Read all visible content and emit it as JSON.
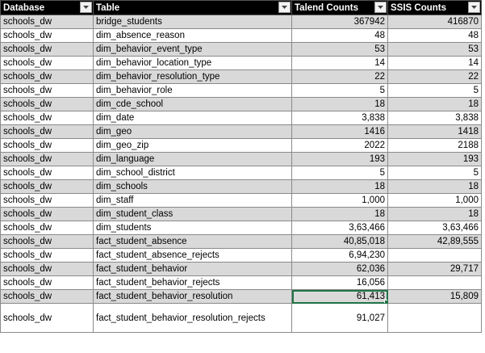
{
  "headers": [
    {
      "label": "Database",
      "key": "database"
    },
    {
      "label": "Table",
      "key": "table"
    },
    {
      "label": "Talend Counts",
      "key": "talend"
    },
    {
      "label": "SSIS Counts",
      "key": "ssis"
    }
  ],
  "header_icon": "filter-dropdown-icon",
  "colors": {
    "header_bg": "#000000",
    "header_text": "#ffffff",
    "band": "#d9d9d9",
    "selection": "#217346"
  },
  "rows": [
    {
      "database": "schools_dw",
      "table": "bridge_students",
      "talend": "367942",
      "ssis": "416870"
    },
    {
      "database": "schools_dw",
      "table": "dim_absence_reason",
      "talend": "48",
      "ssis": "48"
    },
    {
      "database": "schools_dw",
      "table": "dim_behavior_event_type",
      "talend": "53",
      "ssis": "53"
    },
    {
      "database": "schools_dw",
      "table": "dim_behavior_location_type",
      "talend": "14",
      "ssis": "14"
    },
    {
      "database": "schools_dw",
      "table": "dim_behavior_resolution_type",
      "talend": "22",
      "ssis": "22"
    },
    {
      "database": "schools_dw",
      "table": "dim_behavior_role",
      "talend": "5",
      "ssis": "5"
    },
    {
      "database": "schools_dw",
      "table": "dim_cde_school",
      "talend": "18",
      "ssis": "18"
    },
    {
      "database": "schools_dw",
      "table": "dim_date",
      "talend": "3,838",
      "ssis": "3,838"
    },
    {
      "database": "schools_dw",
      "table": "dim_geo",
      "talend": "1416",
      "ssis": "1418"
    },
    {
      "database": "schools_dw",
      "table": "dim_geo_zip",
      "talend": "2022",
      "ssis": "2188"
    },
    {
      "database": "schools_dw",
      "table": "dim_language",
      "talend": "193",
      "ssis": "193"
    },
    {
      "database": "schools_dw",
      "table": "dim_school_district",
      "talend": "5",
      "ssis": "5"
    },
    {
      "database": "schools_dw",
      "table": "dim_schools",
      "talend": "18",
      "ssis": "18"
    },
    {
      "database": "schools_dw",
      "table": "dim_staff",
      "talend": "1,000",
      "ssis": "1,000"
    },
    {
      "database": "schools_dw",
      "table": "dim_student_class",
      "talend": "18",
      "ssis": "18"
    },
    {
      "database": "schools_dw",
      "table": "dim_students",
      "talend": "3,63,466",
      "ssis": "3,63,466"
    },
    {
      "database": "schools_dw",
      "table": "fact_student_absence",
      "talend": "40,85,018",
      "ssis": "42,89,555"
    },
    {
      "database": "schools_dw",
      "table": "fact_student_absence_rejects",
      "talend": "6,94,230",
      "ssis": ""
    },
    {
      "database": "schools_dw",
      "table": "fact_student_behavior",
      "talend": "62,036",
      "ssis": "29,717"
    },
    {
      "database": "schools_dw",
      "table": "fact_student_behavior_rejects",
      "talend": "16,056",
      "ssis": ""
    },
    {
      "database": "schools_dw",
      "table": "fact_student_behavior_resolution",
      "talend": "61,413",
      "ssis": "15,809",
      "selected": "talend"
    },
    {
      "database": "schools_dw",
      "table": "fact_student_behavior_resolution_rejects",
      "talend": "91,027",
      "ssis": "",
      "tall": true
    }
  ]
}
